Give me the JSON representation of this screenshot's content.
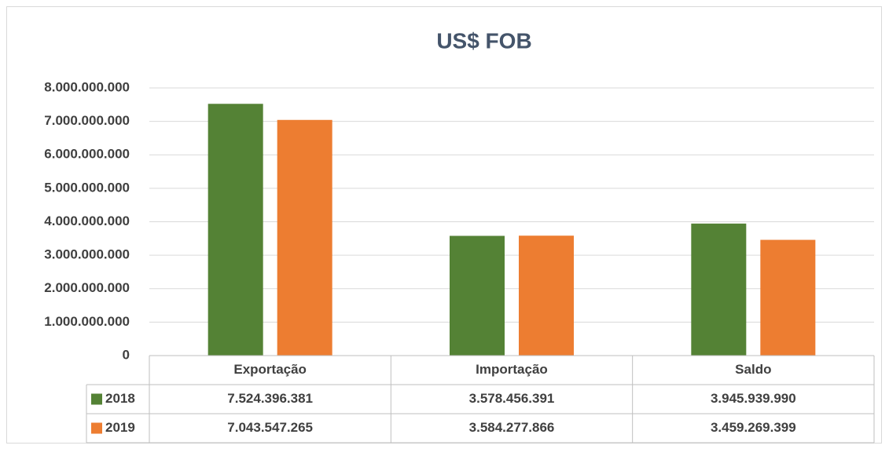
{
  "chart_data": {
    "type": "bar",
    "title": "US$ FOB",
    "categories": [
      "Exportação",
      "Importação",
      "Saldo"
    ],
    "series": [
      {
        "name": "2018",
        "color": "#548235",
        "values": [
          7524396381,
          3578456391,
          3945939990
        ],
        "value_labels": [
          "7.524.396.381",
          "3.578.456.391",
          "3.945.939.990"
        ]
      },
      {
        "name": "2019",
        "color": "#ed7d31",
        "values": [
          7043547265,
          3584277866,
          3459269399
        ],
        "value_labels": [
          "7.043.547.265",
          "3.584.277.866",
          "3.459.269.399"
        ]
      }
    ],
    "ylim": [
      0,
      8000000000
    ],
    "yticks": [
      0,
      {
        "value": 1000000000,
        "label": "1.000.000.000"
      },
      {
        "value": 2000000000,
        "label": "2.000.000.000"
      },
      {
        "value": 3000000000,
        "label": "3.000.000.000"
      },
      {
        "value": 4000000000,
        "label": "4.000.000.000"
      },
      {
        "value": 5000000000,
        "label": "5.000.000.000"
      },
      {
        "value": 6000000000,
        "label": "6.000.000.000"
      },
      {
        "value": 7000000000,
        "label": "7.000.000.000"
      },
      {
        "value": 8000000000,
        "label": "8.000.000.000"
      }
    ],
    "grid": true,
    "legend": "table"
  }
}
